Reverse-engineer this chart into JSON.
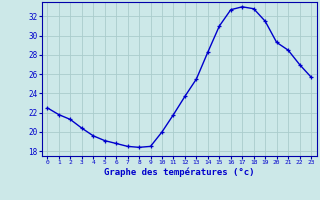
{
  "hours": [
    0,
    1,
    2,
    3,
    4,
    5,
    6,
    7,
    8,
    9,
    10,
    11,
    12,
    13,
    14,
    15,
    16,
    17,
    18,
    19,
    20,
    21,
    22,
    23
  ],
  "temperatures": [
    22.5,
    21.8,
    21.3,
    20.4,
    19.6,
    19.1,
    18.8,
    18.5,
    18.4,
    18.5,
    20.0,
    21.8,
    23.7,
    25.5,
    28.3,
    31.0,
    32.7,
    33.0,
    32.8,
    31.5,
    29.3,
    28.5,
    27.0,
    25.7
  ],
  "xlim": [
    -0.5,
    23.5
  ],
  "ylim": [
    17.5,
    33.5
  ],
  "yticks": [
    18,
    20,
    22,
    24,
    26,
    28,
    30,
    32
  ],
  "xticks": [
    0,
    1,
    2,
    3,
    4,
    5,
    6,
    7,
    8,
    9,
    10,
    11,
    12,
    13,
    14,
    15,
    16,
    17,
    18,
    19,
    20,
    21,
    22,
    23
  ],
  "xlabel": "Graphe des températures (°c)",
  "line_color": "#0000cc",
  "marker": "+",
  "bg_color": "#cce8e8",
  "grid_color": "#aacccc",
  "axis_label_color": "#0000cc",
  "tick_label_color": "#0000cc",
  "spine_color": "#0000aa",
  "title": ""
}
